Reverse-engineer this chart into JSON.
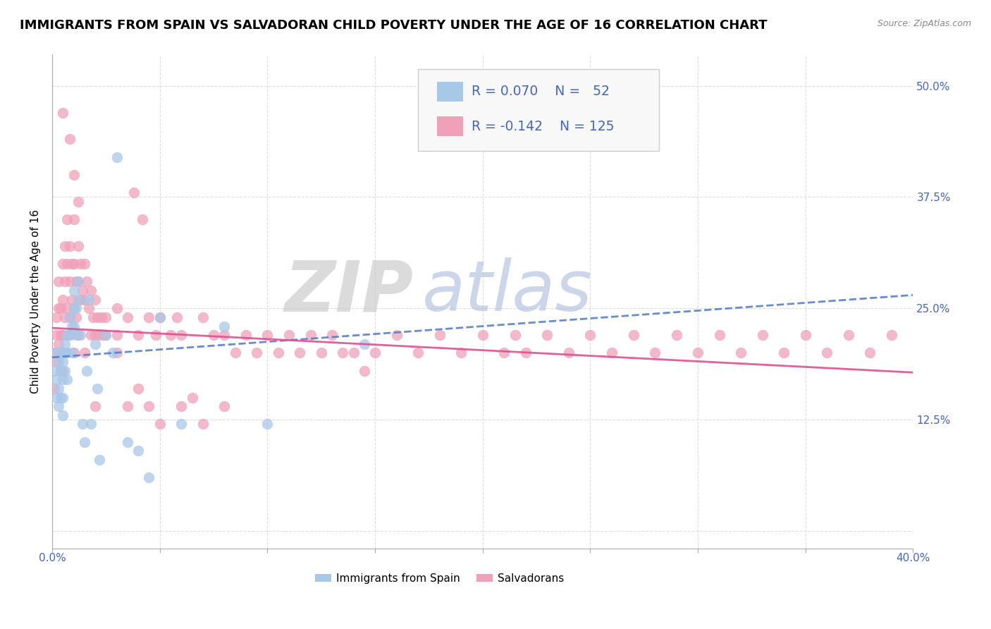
{
  "title": "IMMIGRANTS FROM SPAIN VS SALVADORAN CHILD POVERTY UNDER THE AGE OF 16 CORRELATION CHART",
  "source": "Source: ZipAtlas.com",
  "ylabel": "Child Poverty Under the Age of 16",
  "ytick_labels": [
    "",
    "12.5%",
    "25.0%",
    "37.5%",
    "50.0%"
  ],
  "ytick_values": [
    0,
    0.125,
    0.25,
    0.375,
    0.5
  ],
  "xlim": [
    0,
    0.4
  ],
  "ylim": [
    -0.02,
    0.535
  ],
  "legend_label_spain": "Immigrants from Spain",
  "legend_label_salv": "Salvadorans",
  "color_spain": "#a8c8e8",
  "color_salv": "#f0a0b8",
  "color_trendline_spain": "#5580cc",
  "color_trendline_salv": "#e05090",
  "color_legend_text": "#4466cc",
  "watermark_zip": "ZIP",
  "watermark_atlas": "atlas",
  "watermark_color_zip": "#cccccc",
  "watermark_color_atlas": "#aabbdd",
  "background_color": "#ffffff",
  "gridline_color": "#dddddd",
  "title_fontsize": 13,
  "axis_label_fontsize": 11,
  "tick_fontsize": 11,
  "spain_trendline_x0": 0.0,
  "spain_trendline_y0": 0.195,
  "spain_trendline_x1": 0.4,
  "spain_trendline_y1": 0.265,
  "salv_trendline_x0": 0.0,
  "salv_trendline_y0": 0.228,
  "salv_trendline_x1": 0.4,
  "salv_trendline_y1": 0.178
}
